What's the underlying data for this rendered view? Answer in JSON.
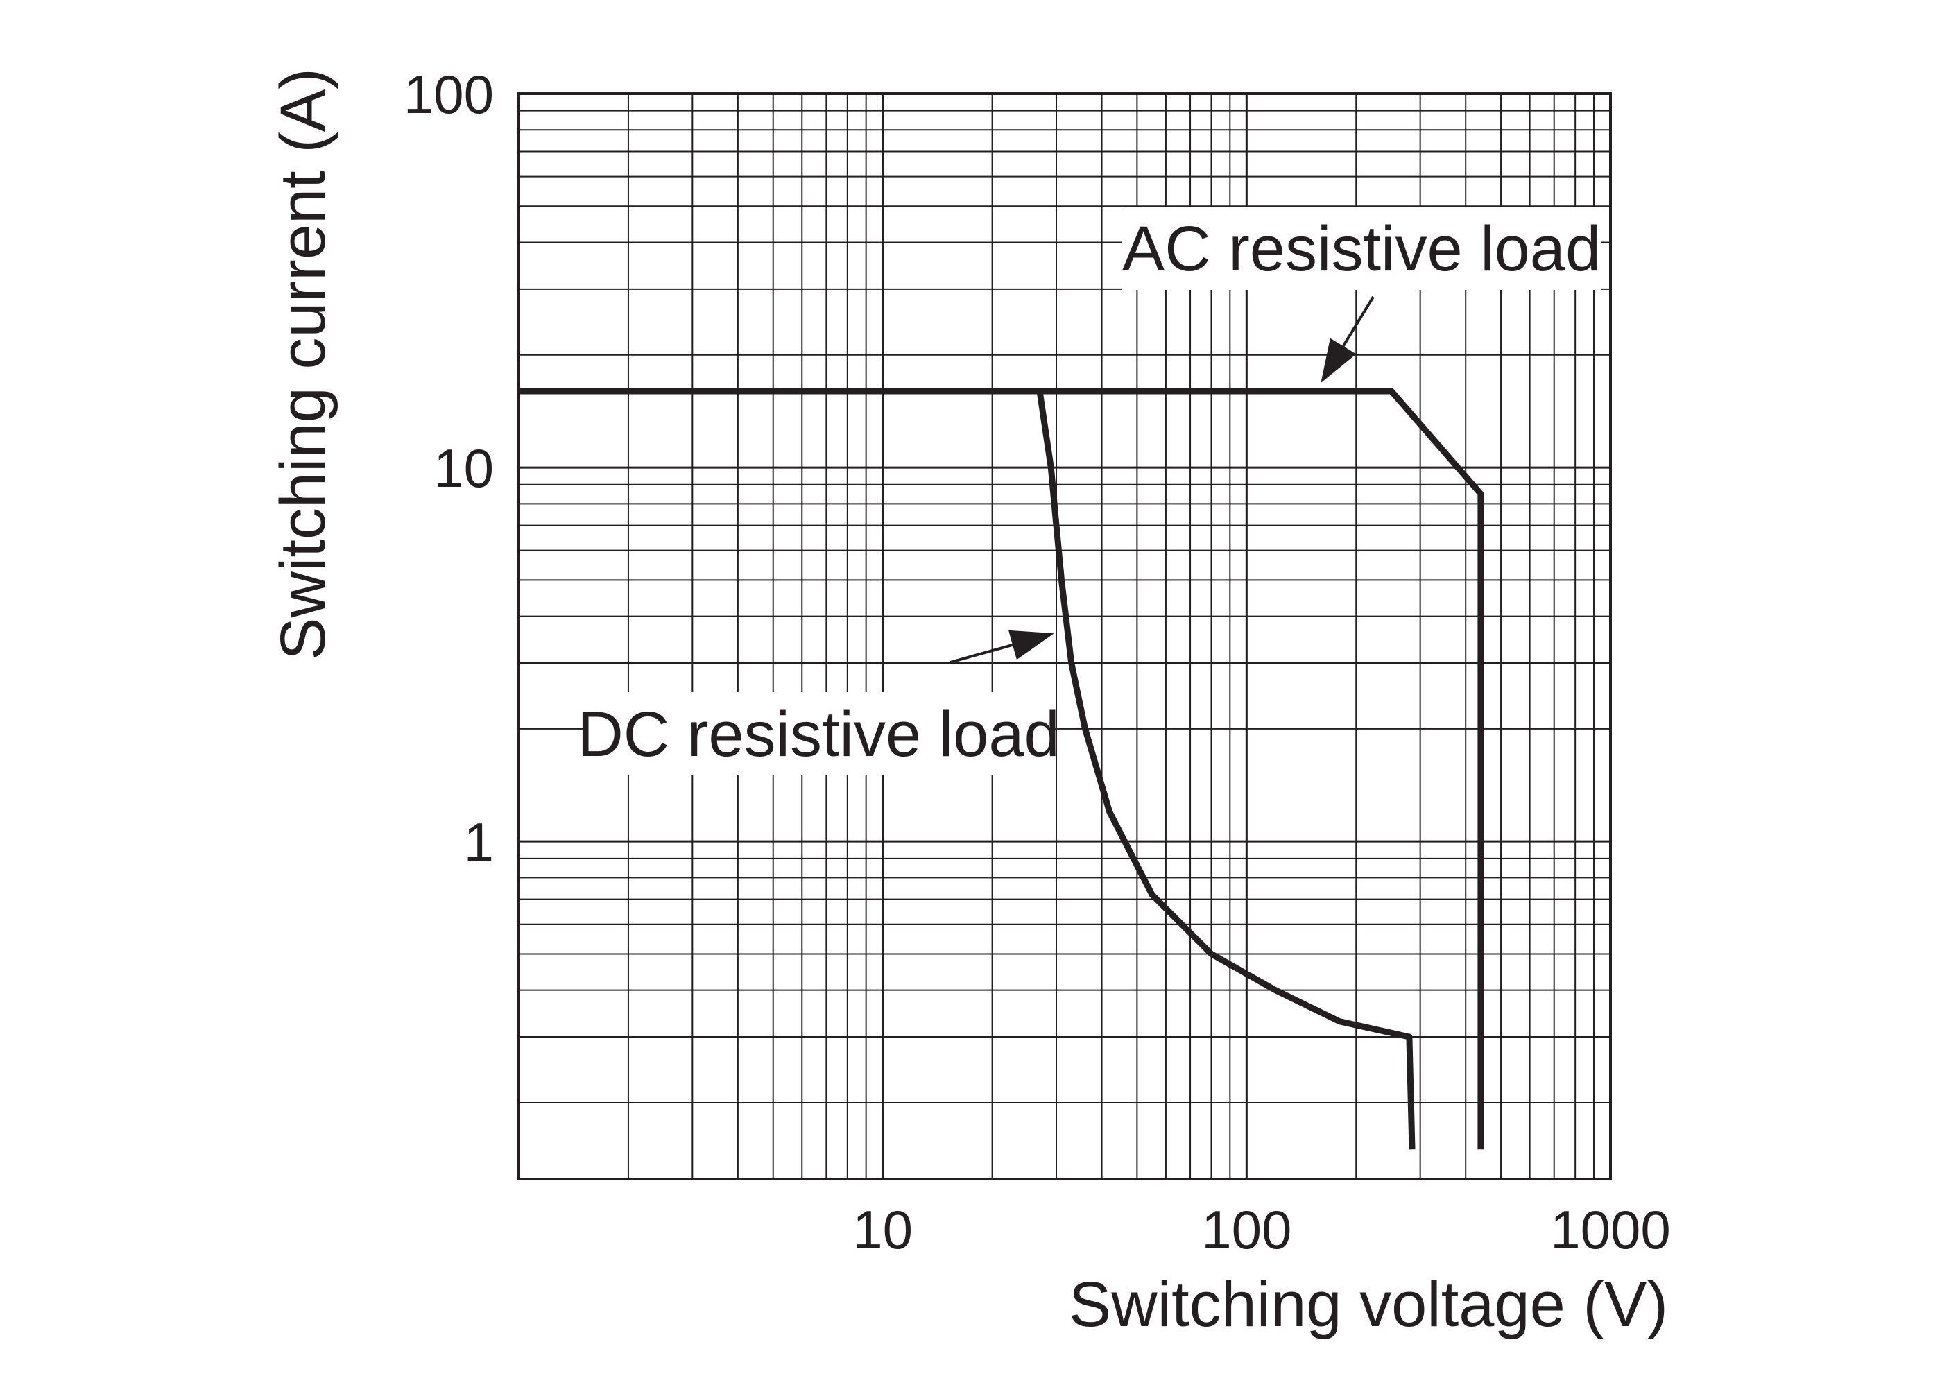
{
  "chart_data": {
    "type": "line",
    "x_scale": "log",
    "y_scale": "log",
    "xlim": [
      1,
      1000
    ],
    "ylim": [
      0.125,
      100
    ],
    "grid": true,
    "xlabel": "Switching voltage (V)",
    "ylabel": "Switching current (A)",
    "x_tick_labels": [
      "10",
      "100",
      "1000"
    ],
    "y_tick_labels": [
      "100",
      "10",
      "1"
    ],
    "series": [
      {
        "name": "AC resistive load",
        "x": [
          1,
          250,
          440,
          440
        ],
        "y": [
          16,
          16,
          8.5,
          0.15
        ]
      },
      {
        "name": "DC resistive load",
        "x": [
          1,
          27,
          29,
          30,
          31,
          33,
          36,
          42,
          55,
          80,
          120,
          180,
          280,
          285
        ],
        "y": [
          16,
          16,
          10,
          7,
          5,
          3,
          2,
          1.2,
          0.72,
          0.5,
          0.4,
          0.33,
          0.3,
          0.15
        ]
      }
    ],
    "annotations": [
      {
        "text": "AC resistive load",
        "arrow_x": 160,
        "arrow_y": 16
      },
      {
        "text": "DC resistive load",
        "arrow_x": 32,
        "arrow_y": 3.6
      }
    ]
  },
  "colors": {
    "line": "#231f20",
    "grid": "#231f20",
    "background": "#ffffff"
  }
}
